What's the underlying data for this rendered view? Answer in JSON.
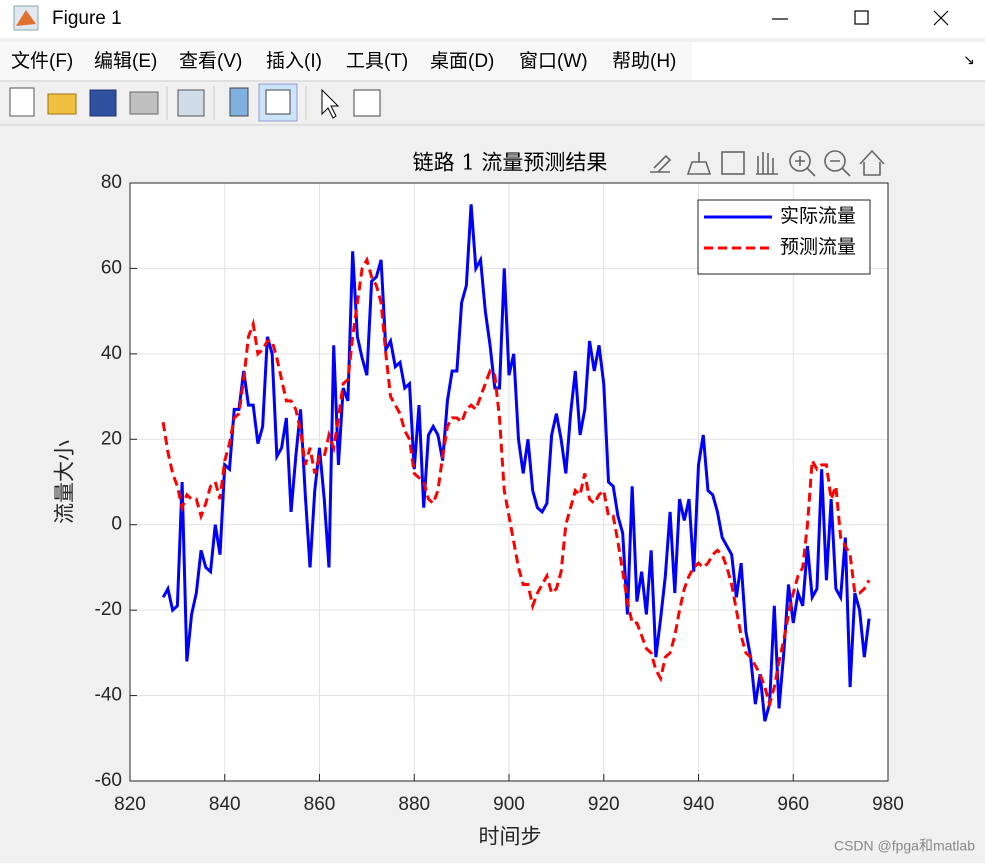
{
  "window": {
    "title": "Figure 1",
    "menu": [
      "文件(F)",
      "编辑(E)",
      "查看(V)",
      "插入(I)",
      "工具(T)",
      "桌面(D)",
      "窗口(W)",
      "帮助(H)"
    ]
  },
  "watermark": "CSDN @fpga和matlab",
  "chart_data": {
    "type": "line",
    "title": "链路 1 流量预测结果",
    "x_label": "时间步",
    "y_label": "流量大小",
    "xlim": [
      820,
      980
    ],
    "xticks": [
      820,
      840,
      860,
      880,
      900,
      920,
      940,
      960,
      980
    ],
    "ylim": [
      -60,
      80
    ],
    "yticks": [
      -60,
      -40,
      -20,
      0,
      20,
      40,
      60,
      80
    ],
    "grid": true,
    "legend": "northeast",
    "x": [
      827,
      828,
      829,
      830,
      831,
      832,
      833,
      834,
      835,
      836,
      837,
      838,
      839,
      840,
      841,
      842,
      843,
      844,
      845,
      846,
      847,
      848,
      849,
      850,
      851,
      852,
      853,
      854,
      855,
      856,
      857,
      858,
      859,
      860,
      861,
      862,
      863,
      864,
      865,
      866,
      867,
      868,
      869,
      870,
      871,
      872,
      873,
      874,
      875,
      876,
      877,
      878,
      879,
      880,
      881,
      882,
      883,
      884,
      885,
      886,
      887,
      888,
      889,
      890,
      891,
      892,
      893,
      894,
      895,
      896,
      897,
      898,
      899,
      900,
      901,
      902,
      903,
      904,
      905,
      906,
      907,
      908,
      909,
      910,
      911,
      912,
      913,
      914,
      915,
      916,
      917,
      918,
      919,
      920,
      921,
      922,
      923,
      924,
      925,
      926,
      927,
      928,
      929,
      930,
      931,
      932,
      933,
      934,
      935,
      936,
      937,
      938,
      939,
      940,
      941,
      942,
      943,
      944,
      945,
      946,
      947,
      948,
      949,
      950,
      951,
      952,
      953,
      954,
      955,
      956,
      957,
      958,
      959,
      960,
      961,
      962,
      963,
      964,
      965,
      966,
      967,
      968,
      969,
      970,
      971,
      972,
      973,
      974,
      975,
      976
    ],
    "series": [
      {
        "name": "实际流量",
        "color": "#0000ff",
        "dash": "solid",
        "values": [
          -17,
          -15,
          -20,
          -19,
          10,
          -32,
          -21,
          -16,
          -6,
          -10,
          -11,
          0,
          -7,
          14,
          13,
          27,
          27,
          36,
          28,
          28,
          19,
          23,
          44,
          40,
          16,
          18,
          25,
          3,
          16,
          27,
          7,
          -10,
          8,
          18,
          6,
          -10,
          42,
          14,
          32,
          29,
          64,
          44,
          39,
          35,
          57,
          58,
          62,
          41,
          43,
          37,
          38,
          32,
          33,
          13,
          28,
          4,
          21,
          23,
          21,
          15,
          29,
          36,
          36,
          52,
          56,
          75,
          60,
          62,
          50,
          42,
          32,
          32,
          60,
          35,
          40,
          20,
          12,
          20,
          8,
          4,
          3,
          5,
          21,
          26,
          20,
          12,
          26,
          36,
          21,
          27,
          43,
          36,
          42,
          33,
          10,
          9,
          2,
          -2,
          -21,
          9,
          -18,
          -11,
          -21,
          -6,
          -31,
          -22,
          -12,
          3,
          -16,
          6,
          1,
          6,
          -11,
          14,
          21,
          8,
          7,
          3,
          -3,
          -5,
          -7,
          -17,
          -9,
          -25,
          -31,
          -42,
          -35,
          -46,
          -42,
          -19,
          -43,
          -30,
          -14,
          -23,
          -16,
          -19,
          -5,
          -17,
          -15,
          13,
          -13,
          6,
          -15,
          -17,
          -3,
          -38,
          -16,
          -20,
          -31,
          -22
        ]
      },
      {
        "name": "预测流量",
        "color": "#ff0000",
        "dash": "dashed",
        "values": [
          24,
          17,
          12,
          9,
          4,
          7,
          6,
          6,
          2,
          5,
          9,
          10,
          6,
          15,
          19,
          25,
          26,
          34,
          44,
          47,
          40,
          41,
          43,
          43,
          39,
          34,
          29,
          29,
          27,
          22,
          14,
          18,
          12,
          16,
          16,
          21,
          18,
          25,
          33,
          34,
          44,
          52,
          60,
          62,
          58,
          56,
          52,
          40,
          30,
          28,
          26,
          22,
          20,
          12,
          11,
          10,
          6,
          5,
          8,
          16,
          23,
          25,
          25,
          24,
          27,
          28,
          27,
          30,
          33,
          36,
          35,
          25,
          8,
          2,
          -4,
          -10,
          -14,
          -14,
          -19,
          -16,
          -14,
          -12,
          -16,
          -15,
          -11,
          0,
          4,
          8,
          7,
          12,
          6,
          5,
          7,
          8,
          2,
          2,
          -4,
          -11,
          -18,
          -23,
          -23,
          -26,
          -29,
          -30,
          -34,
          -36,
          -31,
          -30,
          -26,
          -20,
          -15,
          -12,
          -10,
          -9,
          -10,
          -9,
          -7,
          -6,
          -7,
          -10,
          -14,
          -20,
          -26,
          -30,
          -31,
          -33,
          -35,
          -38,
          -42,
          -38,
          -32,
          -27,
          -21,
          -16,
          -12,
          -10,
          0,
          15,
          13,
          14,
          14,
          6,
          9,
          -3,
          -5,
          -7,
          -16,
          -16,
          -15,
          -13
        ]
      }
    ]
  }
}
